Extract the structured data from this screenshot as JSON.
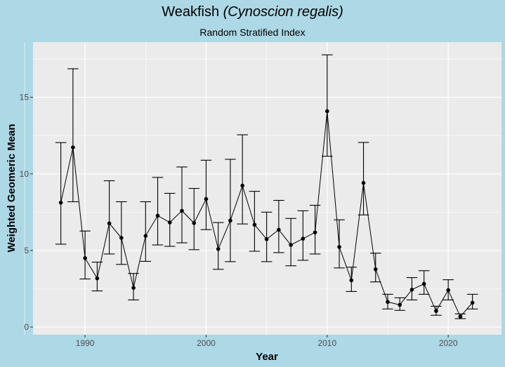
{
  "chart_data": {
    "type": "line",
    "title": "Weakfish",
    "title_italic": "(Cynoscion regalis)",
    "subtitle": "Random Stratified Index",
    "xlabel": "Year",
    "ylabel": "Weighted Geomeric Mean",
    "xlim": [
      1985.7,
      2024.4
    ],
    "ylim": [
      -0.5,
      18.6
    ],
    "xticks": [
      1990,
      2000,
      2010,
      2020
    ],
    "yticks": [
      0,
      5,
      10,
      15
    ],
    "grid": true,
    "error_bars": true,
    "colors": {
      "background": "#ADD8E6",
      "panel": "#EBEBEB",
      "grid": "#FFFFFF",
      "series": "#000000"
    },
    "x": [
      1988,
      1989,
      1990,
      1991,
      1992,
      1993,
      1994,
      1995,
      1996,
      1997,
      1998,
      1999,
      2000,
      2001,
      2002,
      2003,
      2004,
      2005,
      2006,
      2007,
      2008,
      2009,
      2010,
      2011,
      2012,
      2013,
      2014,
      2015,
      2016,
      2017,
      2018,
      2019,
      2020,
      2021,
      2022
    ],
    "y": [
      8.12,
      11.73,
      4.5,
      3.18,
      6.77,
      5.82,
      2.56,
      5.95,
      7.27,
      6.83,
      7.59,
      6.79,
      8.36,
      5.09,
      6.95,
      9.23,
      6.68,
      5.74,
      6.35,
      5.36,
      5.77,
      6.18,
      14.09,
      5.23,
      3.05,
      9.41,
      3.77,
      1.64,
      1.45,
      2.44,
      2.82,
      1.05,
      2.41,
      0.68,
      1.59
    ],
    "lower": [
      5.41,
      8.18,
      3.14,
      2.36,
      4.77,
      4.09,
      1.77,
      4.29,
      5.36,
      5.27,
      5.5,
      5.05,
      6.36,
      3.77,
      4.27,
      6.73,
      4.95,
      4.27,
      4.86,
      4.0,
      4.36,
      4.77,
      11.15,
      3.86,
      2.32,
      7.32,
      2.95,
      1.18,
      1.09,
      1.77,
      2.14,
      0.77,
      1.77,
      0.55,
      1.18
    ],
    "upper": [
      12.04,
      16.86,
      6.27,
      4.24,
      9.55,
      8.18,
      3.5,
      8.18,
      9.77,
      8.73,
      10.45,
      9.05,
      10.89,
      6.82,
      10.95,
      12.55,
      8.86,
      7.5,
      8.27,
      7.09,
      7.59,
      7.95,
      17.77,
      7.0,
      3.91,
      12.05,
      4.82,
      2.14,
      1.91,
      3.23,
      3.68,
      1.36,
      3.09,
      0.86,
      2.14
    ]
  }
}
